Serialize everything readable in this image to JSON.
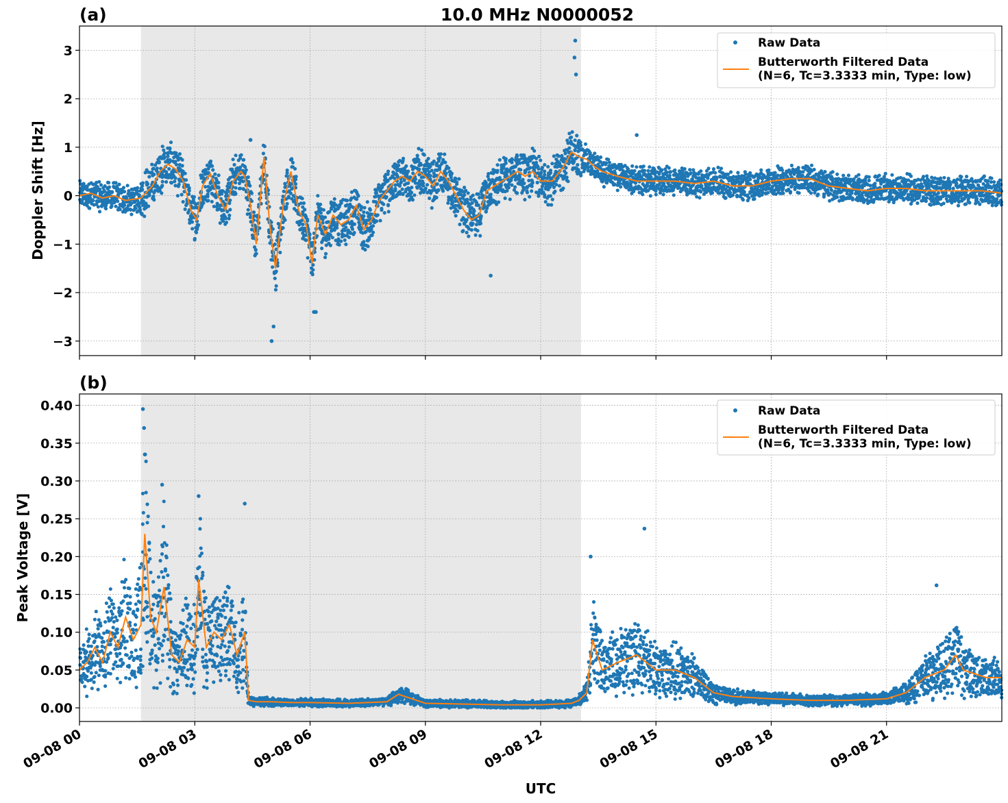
{
  "title": "10.0 MHz N0000052",
  "colors": {
    "raw": "#1f77b4",
    "filtered": "#ff7f0e",
    "shade": "#e8e8e8",
    "grid": "#b0b0b0"
  },
  "legend": {
    "raw_label": "Raw Data",
    "filtered_label_line1": "Butterworth Filtered Data",
    "filtered_label_line2": "(N=6, Tc=3.3333 min, Type: low)"
  },
  "x_axis": {
    "label": "UTC",
    "xlim_hours": [
      0,
      24
    ],
    "ticks": [
      {
        "hour": 0,
        "label": "09-08 00"
      },
      {
        "hour": 3,
        "label": "09-08 03"
      },
      {
        "hour": 6,
        "label": "09-08 06"
      },
      {
        "hour": 9,
        "label": "09-08 09"
      },
      {
        "hour": 12,
        "label": "09-08 12"
      },
      {
        "hour": 15,
        "label": "09-08 15"
      },
      {
        "hour": 18,
        "label": "09-08 18"
      },
      {
        "hour": 21,
        "label": "09-08 21"
      }
    ]
  },
  "shaded_interval_hours": [
    1.6,
    13.05
  ],
  "chart_data": [
    {
      "type": "scatter",
      "panel": "(a)",
      "title": "10.0 MHz N0000052",
      "ylabel": "Doppler Shift [Hz]",
      "xlabel": "",
      "ylim": [
        -3.3,
        3.5
      ],
      "yticks": [
        {
          "value": 3,
          "label": "3"
        },
        {
          "value": 2,
          "label": "2"
        },
        {
          "value": 1,
          "label": "1"
        },
        {
          "value": 0,
          "label": "0"
        },
        {
          "value": -1,
          "label": "−1"
        },
        {
          "value": -2,
          "label": "−2"
        },
        {
          "value": -3,
          "label": "−3"
        }
      ],
      "grid": true,
      "legend_position": "top-right",
      "series": [
        {
          "name": "Butterworth Filtered Data",
          "kind": "line",
          "x_hours": [
            0.0,
            0.3,
            0.6,
            0.9,
            1.2,
            1.6,
            1.9,
            2.1,
            2.3,
            2.5,
            2.7,
            2.9,
            3.05,
            3.2,
            3.4,
            3.6,
            3.8,
            4.0,
            4.2,
            4.3,
            4.45,
            4.6,
            4.8,
            4.95,
            5.1,
            5.3,
            5.5,
            5.7,
            5.9,
            6.05,
            6.2,
            6.4,
            6.6,
            6.8,
            7.0,
            7.2,
            7.4,
            7.6,
            7.8,
            8.0,
            8.2,
            8.4,
            8.6,
            8.8,
            9.0,
            9.2,
            9.4,
            9.6,
            9.8,
            10.0,
            10.2,
            10.4,
            10.6,
            10.8,
            11.0,
            11.2,
            11.4,
            11.6,
            11.8,
            12.0,
            12.3,
            12.6,
            12.8,
            13.0,
            13.2,
            13.4,
            13.6,
            14.0,
            14.5,
            15.0,
            15.5,
            16.0,
            16.5,
            17.0,
            17.5,
            18.0,
            18.5,
            19.0,
            19.5,
            20.0,
            20.5,
            21.0,
            21.5,
            22.0,
            22.5,
            23.0,
            23.5,
            24.0
          ],
          "y": [
            0.0,
            0.05,
            -0.05,
            0.0,
            -0.1,
            -0.05,
            0.2,
            0.5,
            0.65,
            0.55,
            0.3,
            -0.3,
            -0.5,
            0.2,
            0.45,
            0.0,
            -0.3,
            0.3,
            0.5,
            0.4,
            -0.2,
            -1.0,
            0.8,
            -0.6,
            -1.5,
            -0.2,
            0.5,
            -0.3,
            -0.6,
            -1.4,
            -0.4,
            -0.8,
            -0.4,
            -0.6,
            -0.5,
            -0.2,
            -0.7,
            -0.5,
            -0.1,
            0.1,
            0.3,
            0.4,
            0.3,
            0.5,
            0.4,
            0.2,
            0.5,
            0.3,
            0.0,
            -0.3,
            -0.5,
            -0.4,
            0.1,
            0.2,
            0.3,
            0.4,
            0.5,
            0.4,
            0.5,
            0.3,
            0.3,
            0.6,
            0.9,
            0.8,
            0.75,
            0.6,
            0.5,
            0.4,
            0.3,
            0.3,
            0.3,
            0.25,
            0.3,
            0.2,
            0.2,
            0.3,
            0.35,
            0.35,
            0.2,
            0.15,
            0.1,
            0.15,
            0.15,
            0.1,
            0.1,
            0.1,
            0.1,
            0.05
          ]
        },
        {
          "name": "Raw Data",
          "kind": "scatter",
          "spread": 0.22,
          "spikes": [
            {
              "x": 4.45,
              "y": 1.15
            },
            {
              "x": 5.0,
              "y": -3.0
            },
            {
              "x": 5.05,
              "y": -2.7
            },
            {
              "x": 6.1,
              "y": -2.4
            },
            {
              "x": 6.15,
              "y": -2.4
            },
            {
              "x": 10.7,
              "y": -1.65
            },
            {
              "x": 12.9,
              "y": 3.2
            },
            {
              "x": 12.88,
              "y": 2.85
            },
            {
              "x": 12.92,
              "y": 2.5
            },
            {
              "x": 14.5,
              "y": 1.25
            }
          ]
        }
      ]
    },
    {
      "type": "scatter",
      "panel": "(b)",
      "title": "",
      "ylabel": "Peak Voltage [V]",
      "xlabel": "UTC",
      "ylim": [
        -0.018,
        0.415
      ],
      "yticks": [
        {
          "value": 0.4,
          "label": "0.40"
        },
        {
          "value": 0.35,
          "label": "0.35"
        },
        {
          "value": 0.3,
          "label": "0.30"
        },
        {
          "value": 0.25,
          "label": "0.25"
        },
        {
          "value": 0.2,
          "label": "0.20"
        },
        {
          "value": 0.15,
          "label": "0.15"
        },
        {
          "value": 0.1,
          "label": "0.10"
        },
        {
          "value": 0.05,
          "label": "0.05"
        },
        {
          "value": 0.0,
          "label": "0.00"
        }
      ],
      "grid": true,
      "legend_position": "top-right",
      "series": [
        {
          "name": "Butterworth Filtered Data",
          "kind": "line",
          "x_hours": [
            0.0,
            0.2,
            0.4,
            0.6,
            0.8,
            1.0,
            1.2,
            1.4,
            1.6,
            1.7,
            1.85,
            2.0,
            2.2,
            2.4,
            2.6,
            2.8,
            3.0,
            3.1,
            3.3,
            3.5,
            3.7,
            3.9,
            4.1,
            4.3,
            4.4,
            4.6,
            5.0,
            5.5,
            6.0,
            7.0,
            8.0,
            8.3,
            9.0,
            10.0,
            11.0,
            12.0,
            12.8,
            13.0,
            13.2,
            13.35,
            13.6,
            14.0,
            14.5,
            15.0,
            15.5,
            16.0,
            16.5,
            17.0,
            18.0,
            19.0,
            20.0,
            21.0,
            21.5,
            22.0,
            22.5,
            22.8,
            23.0,
            23.3,
            23.6,
            24.0
          ],
          "y": [
            0.05,
            0.06,
            0.08,
            0.06,
            0.1,
            0.08,
            0.12,
            0.09,
            0.11,
            0.23,
            0.12,
            0.1,
            0.16,
            0.07,
            0.06,
            0.09,
            0.08,
            0.17,
            0.08,
            0.1,
            0.09,
            0.11,
            0.07,
            0.1,
            0.01,
            0.008,
            0.008,
            0.007,
            0.007,
            0.006,
            0.008,
            0.018,
            0.006,
            0.005,
            0.004,
            0.004,
            0.006,
            0.01,
            0.02,
            0.09,
            0.05,
            0.06,
            0.07,
            0.05,
            0.05,
            0.04,
            0.02,
            0.015,
            0.012,
            0.01,
            0.01,
            0.012,
            0.02,
            0.04,
            0.05,
            0.07,
            0.05,
            0.045,
            0.04,
            0.04
          ]
        },
        {
          "name": "Raw Data",
          "kind": "scatter",
          "spread_rel": 0.55,
          "spikes": [
            {
              "x": 1.65,
              "y": 0.395
            },
            {
              "x": 1.68,
              "y": 0.37
            },
            {
              "x": 1.7,
              "y": 0.335
            },
            {
              "x": 2.15,
              "y": 0.295
            },
            {
              "x": 3.1,
              "y": 0.28
            },
            {
              "x": 4.3,
              "y": 0.27
            },
            {
              "x": 13.3,
              "y": 0.2
            },
            {
              "x": 14.7,
              "y": 0.237
            },
            {
              "x": 22.3,
              "y": 0.162
            }
          ]
        }
      ]
    }
  ]
}
